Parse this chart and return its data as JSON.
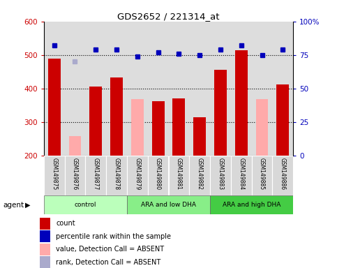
{
  "title": "GDS2652 / 221314_at",
  "samples": [
    "GSM149875",
    "GSM149876",
    "GSM149877",
    "GSM149878",
    "GSM149879",
    "GSM149880",
    "GSM149881",
    "GSM149882",
    "GSM149883",
    "GSM149884",
    "GSM149885",
    "GSM149886"
  ],
  "bar_values": [
    490,
    258,
    405,
    432,
    368,
    362,
    370,
    315,
    455,
    513,
    368,
    412
  ],
  "bar_absent": [
    false,
    true,
    false,
    false,
    true,
    false,
    false,
    false,
    false,
    false,
    true,
    false
  ],
  "percentile_values": [
    82,
    70,
    79,
    79,
    74,
    77,
    76,
    75,
    79,
    82,
    75,
    79
  ],
  "rank_absent_idx": 1,
  "ylim_left": [
    200,
    600
  ],
  "ylim_right": [
    0,
    100
  ],
  "yticks_left": [
    200,
    300,
    400,
    500,
    600
  ],
  "yticks_right": [
    0,
    25,
    50,
    75,
    100
  ],
  "ytick_right_labels": [
    "0",
    "25",
    "50",
    "75",
    "100%"
  ],
  "groups": [
    {
      "label": "control",
      "start": 0,
      "end": 3,
      "color": "#bbffbb"
    },
    {
      "label": "ARA and low DHA",
      "start": 4,
      "end": 7,
      "color": "#88ee88"
    },
    {
      "label": "ARA and high DHA",
      "start": 8,
      "end": 11,
      "color": "#44cc44"
    }
  ],
  "bar_color_present": "#cc0000",
  "bar_color_absent": "#ffaaaa",
  "dot_color_present": "#0000bb",
  "dot_color_absent": "#aaaacc",
  "bg_color": "#ffffff",
  "axis_bg": "#dddddd",
  "left_label_color": "#cc0000",
  "right_label_color": "#0000bb",
  "gridline_y": [
    300,
    400,
    500
  ],
  "legend_labels": [
    "count",
    "percentile rank within the sample",
    "value, Detection Call = ABSENT",
    "rank, Detection Call = ABSENT"
  ],
  "legend_colors": [
    "#cc0000",
    "#0000bb",
    "#ffaaaa",
    "#aaaacc"
  ]
}
